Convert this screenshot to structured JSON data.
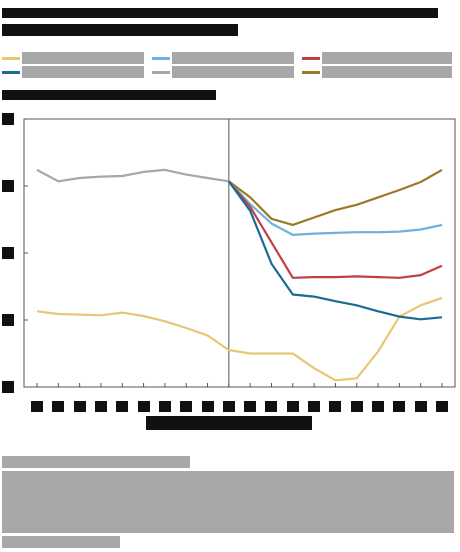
{
  "chart_data": {
    "type": "line",
    "title": "",
    "xlabel": "",
    "ylabel": "",
    "x": [
      0,
      1,
      2,
      3,
      4,
      5,
      6,
      7,
      8,
      9,
      10,
      11,
      12,
      13,
      14,
      15,
      16,
      17,
      18,
      19
    ],
    "ylim": [
      0,
      4
    ],
    "series": [
      {
        "name": "",
        "color": "#a7a7a7",
        "x": [
          0,
          1,
          2,
          3,
          4,
          5,
          6,
          7,
          8,
          9
        ],
        "values": [
          3.24,
          3.07,
          3.12,
          3.14,
          3.15,
          3.21,
          3.24,
          3.17,
          3.12,
          3.07
        ]
      },
      {
        "name": "",
        "color": "#e6c872",
        "x": [
          0,
          1,
          2,
          3,
          4,
          5,
          6,
          7,
          8,
          9,
          10,
          11,
          12,
          13,
          14,
          15,
          16,
          17,
          18,
          19
        ],
        "values": [
          1.13,
          1.09,
          1.08,
          1.07,
          1.11,
          1.06,
          0.98,
          0.88,
          0.77,
          0.55,
          0.5,
          0.5,
          0.5,
          0.28,
          0.1,
          0.13,
          0.53,
          1.05,
          1.22,
          1.33
        ]
      },
      {
        "name": "",
        "color": "#9a7a22",
        "x": [
          9,
          10,
          11,
          12,
          13,
          14,
          15,
          16,
          17,
          18,
          19
        ],
        "values": [
          3.07,
          2.83,
          2.51,
          2.42,
          2.53,
          2.64,
          2.72,
          2.83,
          2.94,
          3.06,
          3.24
        ]
      },
      {
        "name": "",
        "color": "#6fb1de",
        "x": [
          9,
          10,
          11,
          12,
          13,
          14,
          15,
          16,
          17,
          18,
          19
        ],
        "values": [
          3.07,
          2.73,
          2.44,
          2.27,
          2.29,
          2.3,
          2.31,
          2.31,
          2.32,
          2.35,
          2.42
        ]
      },
      {
        "name": "",
        "color": "#c0403f",
        "x": [
          9,
          10,
          11,
          12,
          13,
          14,
          15,
          16,
          17,
          18,
          19
        ],
        "values": [
          3.07,
          2.69,
          2.16,
          1.63,
          1.64,
          1.64,
          1.65,
          1.64,
          1.63,
          1.67,
          1.81
        ]
      },
      {
        "name": "",
        "color": "#1b6b94",
        "x": [
          9,
          10,
          11,
          12,
          13,
          14,
          15,
          16,
          17,
          18,
          19
        ],
        "values": [
          3.07,
          2.63,
          1.84,
          1.38,
          1.35,
          1.28,
          1.22,
          1.13,
          1.05,
          1.01,
          1.04
        ]
      }
    ],
    "grid": false,
    "legend": "top"
  },
  "icons": {
    "palette": [
      "#a7a7a7",
      "#e6c872",
      "#9a7a22",
      "#6fb1de",
      "#c0403f",
      "#1b6b94"
    ]
  }
}
